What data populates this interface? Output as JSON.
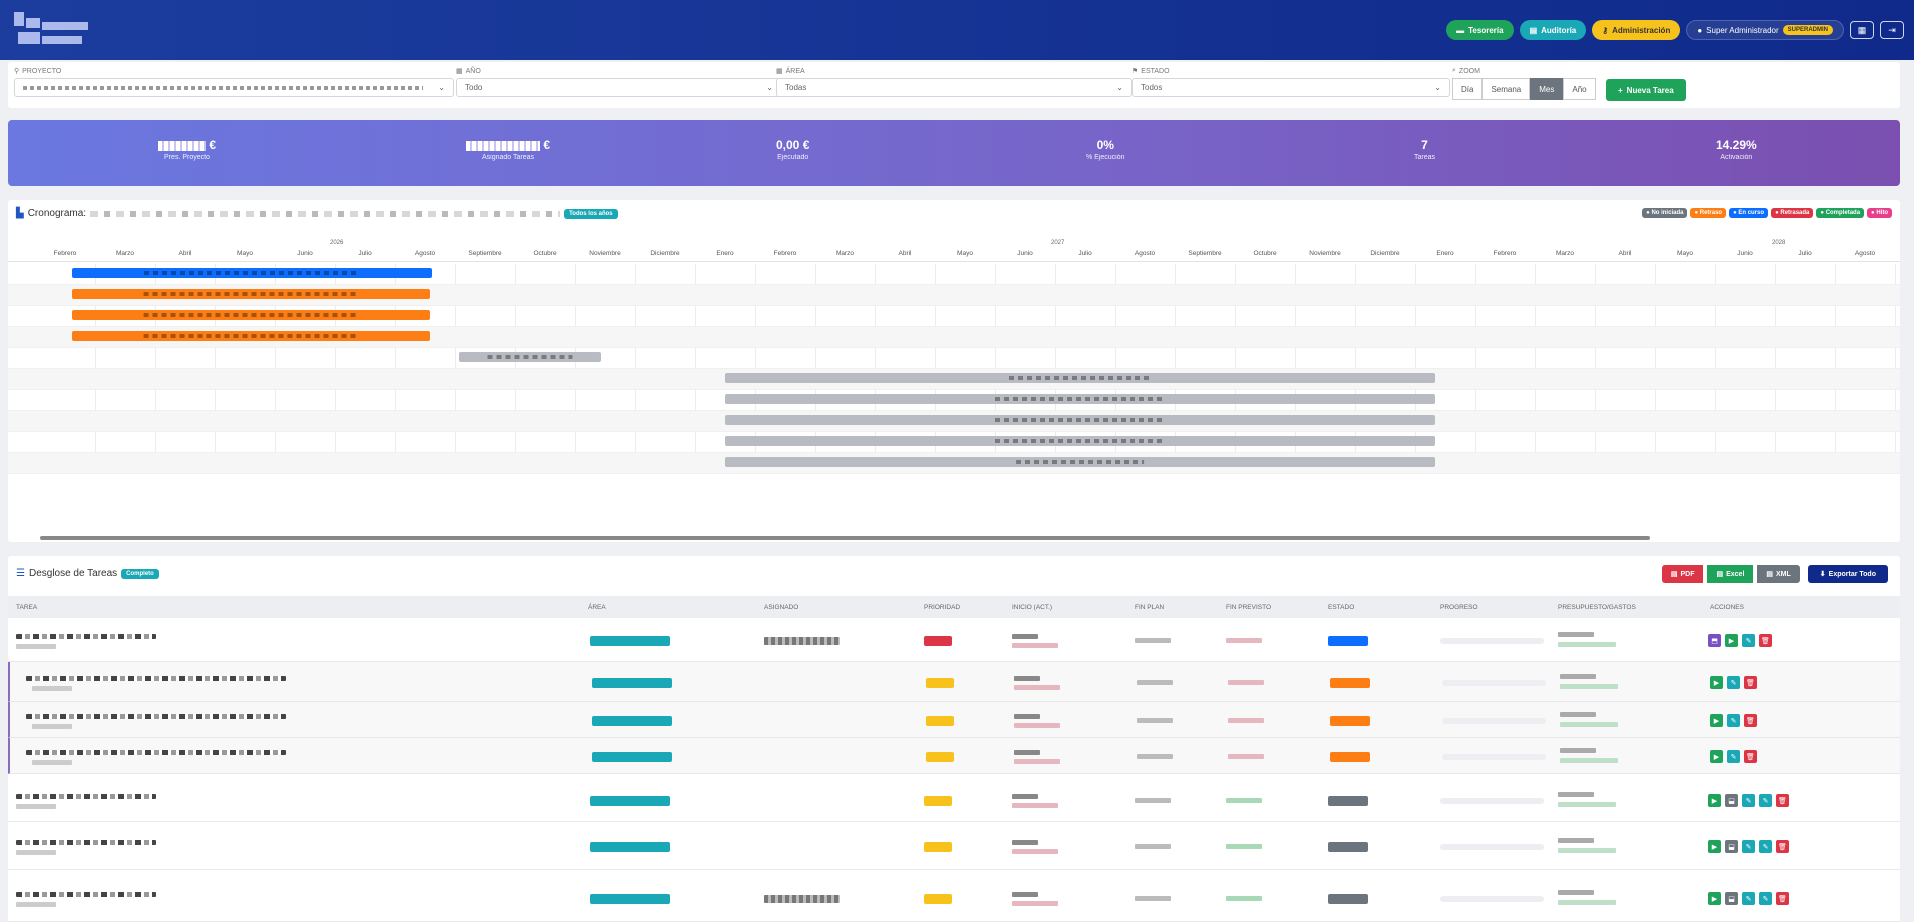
{
  "header": {
    "nav": [
      {
        "label": "Tesorería",
        "icon": "money-icon",
        "color": "#1fa35b"
      },
      {
        "label": "Auditoría",
        "icon": "clipboard-icon",
        "color": "#1aa7b6"
      },
      {
        "label": "Administración",
        "icon": "key-icon",
        "color": "#f6c21b"
      }
    ],
    "user": {
      "label": "Super Administrador",
      "role": "SUPERADMIN"
    }
  },
  "filters": {
    "proyecto": {
      "label": "PROYECTO",
      "value": ""
    },
    "anio": {
      "label": "AÑO",
      "value": "Todo"
    },
    "area": {
      "label": "ÁREA",
      "value": "Todas"
    },
    "estado": {
      "label": "ESTADO",
      "value": "Todos"
    },
    "zoom": {
      "label": "ZOOM",
      "options": [
        "Día",
        "Semana",
        "Mes",
        "Año"
      ],
      "selected": "Mes"
    },
    "new_task": "Nueva Tarea"
  },
  "stats": [
    {
      "value": "€",
      "label": "Pres. Proyecto"
    },
    {
      "value": "€",
      "label": "Asignado Tareas"
    },
    {
      "value": "0,00 €",
      "label": "Ejecutado"
    },
    {
      "value": "0%",
      "label": "% Ejecución"
    },
    {
      "value": "7",
      "label": "Tareas"
    },
    {
      "value": "14.29%",
      "label": "Activación"
    }
  ],
  "gantt": {
    "title": "Cronograma:",
    "years_badge": "Todos los años",
    "legend": [
      {
        "label": "No iniciada",
        "color": "#6c757d"
      },
      {
        "label": "Retraso",
        "color": "#fd7e14"
      },
      {
        "label": "En curso",
        "color": "#0d6efd"
      },
      {
        "label": "Retrasada",
        "color": "#dc3545"
      },
      {
        "label": "Completada",
        "color": "#1fa35b"
      },
      {
        "label": "Hito",
        "color": "#e83e8c"
      }
    ],
    "years": [
      "2026",
      "2027",
      "2028"
    ],
    "months": [
      "Febrero",
      "Marzo",
      "Abril",
      "Mayo",
      "Junio",
      "Julio",
      "Agosto",
      "Septiembre",
      "Octubre",
      "Noviembre",
      "Diciembre",
      "Enero",
      "Febrero",
      "Marzo",
      "Abril",
      "Mayo",
      "Junio",
      "Julio",
      "Agosto",
      "Septiembre",
      "Octubre",
      "Noviembre",
      "Diciembre",
      "Enero",
      "Febrero",
      "Marzo",
      "Abril",
      "Mayo",
      "Junio",
      "Julio",
      "Agosto"
    ]
  },
  "tasks": {
    "title": "Desglose de Tareas",
    "badge": "Completo",
    "export": [
      "PDF",
      "Excel",
      "XML",
      "Exportar Todo"
    ],
    "columns": [
      "TAREA",
      "ÁREA",
      "ASIGNADO",
      "PRIORIDAD",
      "INICIO (ACT.)",
      "FIN PLAN",
      "FIN PREVISTO",
      "ESTADO",
      "PROGRESO",
      "PRESUPUESTO/GASTOS",
      "ACCIONES"
    ]
  }
}
